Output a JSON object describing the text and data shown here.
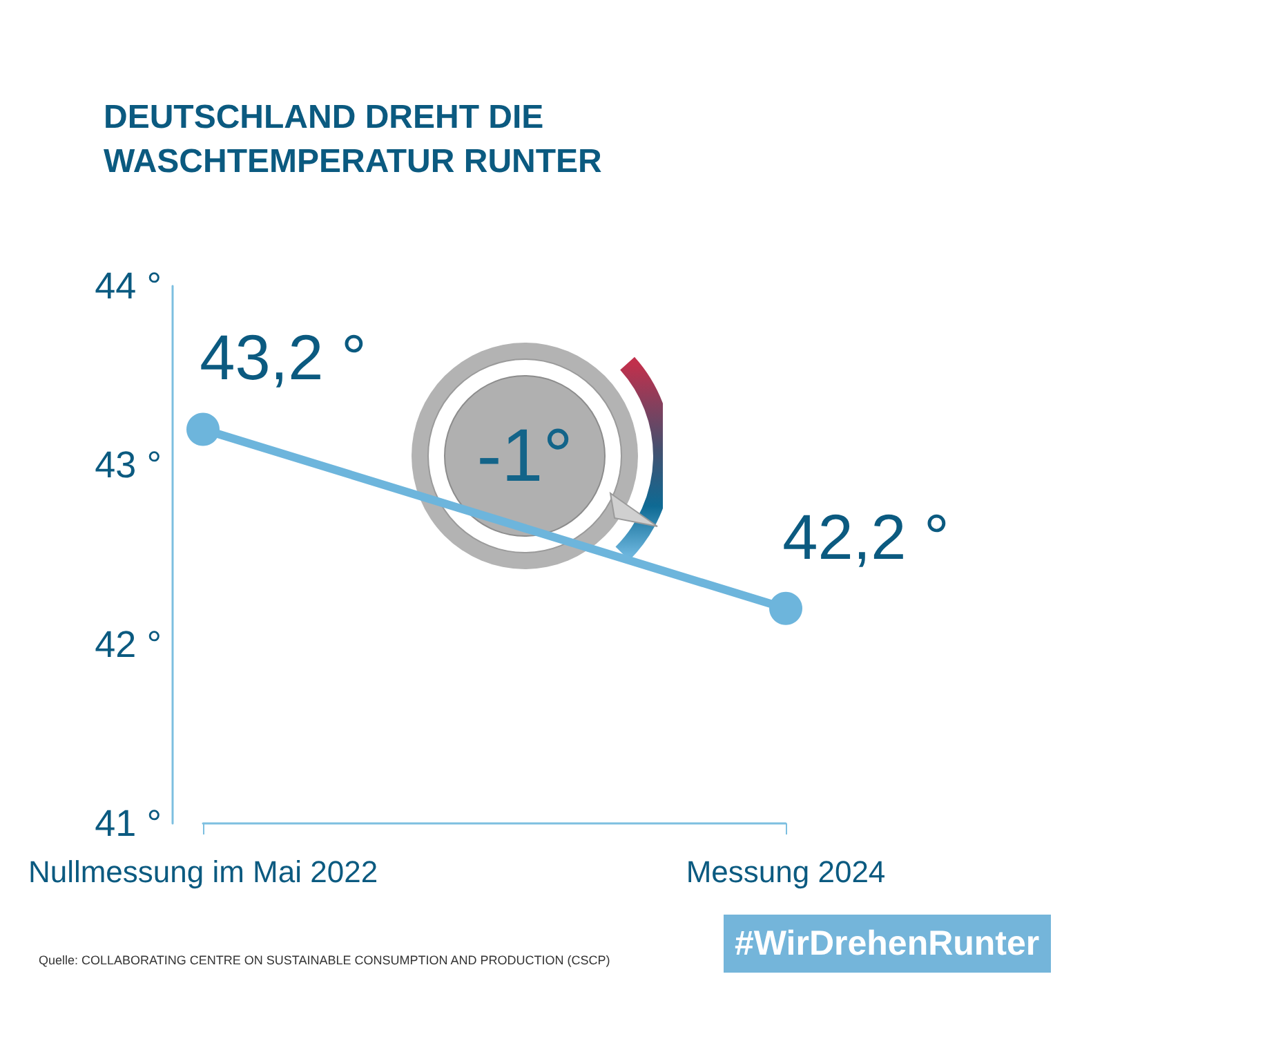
{
  "chart_data": {
    "type": "line",
    "title": "DEUTSCHLAND DREHT DIE WASCHTEMPERATUR RUNTER",
    "categories": [
      "Nullmessung im Mai 2022",
      "Messung 2024"
    ],
    "series": [
      {
        "color": "#6db5dc",
        "values": [
          43.2,
          42.2
        ],
        "value_labels": [
          "43,2 °",
          "42,2 °"
        ]
      }
    ],
    "ylim": [
      41,
      44
    ],
    "yticks": [
      {
        "value": 41,
        "label": "41 °"
      },
      {
        "value": 42,
        "label": "42 °"
      },
      {
        "value": 43,
        "label": "43 °"
      },
      {
        "value": 44,
        "label": "44 °"
      }
    ],
    "marker": "circle",
    "annotations": [
      "-1°",
      "#WirDrehenRunter",
      "Quelle: COLLABORATING CENTRE ON SUSTAINABLE CONSUMPTION AND PRODUCTION (CSCP)"
    ]
  }
}
